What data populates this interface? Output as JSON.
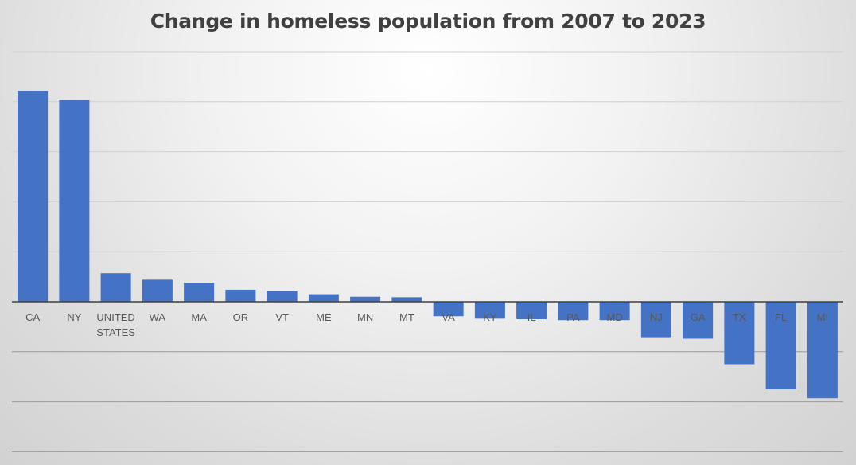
{
  "chart_data": {
    "type": "bar",
    "title": "Change in homeless population from 2007 to 2023",
    "categories": [
      "CA",
      "NY",
      "UNITED STATES",
      "WA",
      "MA",
      "OR",
      "VT",
      "ME",
      "MN",
      "MT",
      "VA",
      "KY",
      "IL",
      "PA",
      "MD",
      "NJ",
      "GA",
      "TX",
      "FL",
      "MI"
    ],
    "values": [
      4.22,
      4.04,
      0.57,
      0.44,
      0.38,
      0.24,
      0.21,
      0.15,
      0.1,
      0.09,
      -0.29,
      -0.34,
      -0.35,
      -0.37,
      -0.37,
      -0.71,
      -0.74,
      -1.25,
      -1.75,
      -1.93
    ],
    "ylim": [
      -3,
      5
    ],
    "grid": true,
    "y_tick_labels_shown": false,
    "bar_color": "#4472C4",
    "gridline_color": "#d0d0d0",
    "zero_line_color": "#404040"
  }
}
